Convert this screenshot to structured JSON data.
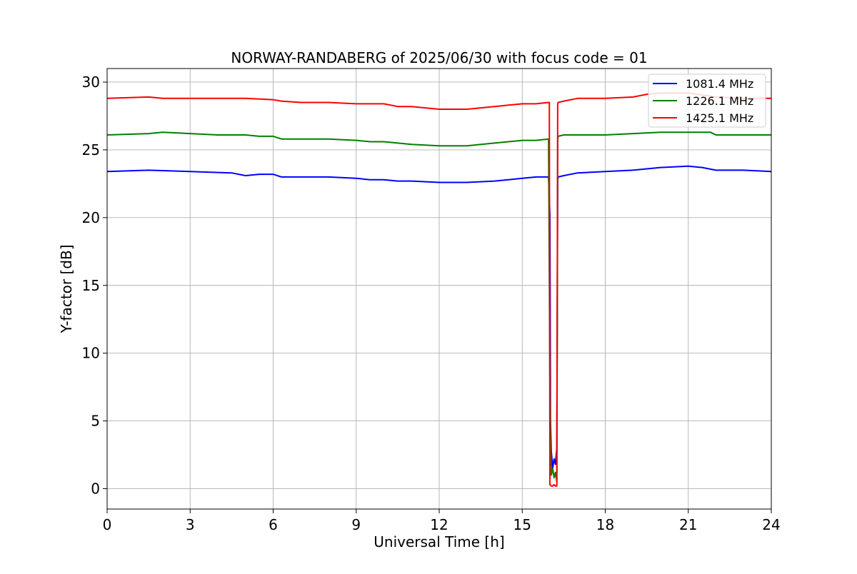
{
  "chart_data": {
    "type": "line",
    "title": "NORWAY-RANDABERG of 2025/06/30 with focus code = 01",
    "xlabel": "Universal Time [h]",
    "ylabel": "Y-factor [dB]",
    "xlim": [
      0,
      24
    ],
    "ylim": [
      -1.5,
      31
    ],
    "xticks": [
      0,
      3,
      6,
      9,
      12,
      15,
      18,
      21,
      24
    ],
    "yticks": [
      0,
      5,
      10,
      15,
      20,
      25,
      30
    ],
    "grid": true,
    "legend_position": "top-right",
    "series": [
      {
        "name": "1081.4 MHz",
        "color": "#0000ff",
        "x": [
          0,
          1.5,
          3,
          4.5,
          5,
          5.5,
          6,
          6.3,
          7,
          8,
          9,
          9.5,
          10,
          10.5,
          11,
          12,
          13,
          14,
          14.5,
          15,
          15.5,
          15.95,
          16.0,
          16.02,
          16.05,
          16.1,
          16.15,
          16.2,
          16.25,
          16.28,
          16.3,
          16.5,
          17,
          18,
          19,
          20,
          21,
          21.5,
          22,
          23,
          24
        ],
        "y": [
          23.4,
          23.5,
          23.4,
          23.3,
          23.1,
          23.2,
          23.2,
          23.0,
          23.0,
          23.0,
          22.9,
          22.8,
          22.8,
          22.7,
          22.7,
          22.6,
          22.6,
          22.7,
          22.8,
          22.9,
          23.0,
          23.0,
          20.2,
          5.0,
          2.8,
          1.5,
          2.2,
          1.8,
          3.0,
          22.8,
          23.0,
          23.1,
          23.3,
          23.4,
          23.5,
          23.7,
          23.8,
          23.7,
          23.5,
          23.5,
          23.4
        ]
      },
      {
        "name": "1226.1 MHz",
        "color": "#008000",
        "x": [
          0,
          1.5,
          2,
          3,
          4,
          5,
          5.5,
          6,
          6.3,
          7,
          8,
          9,
          9.5,
          10,
          10.5,
          11,
          12,
          13,
          14,
          14.5,
          15,
          15.5,
          15.95,
          16.0,
          16.02,
          16.05,
          16.1,
          16.15,
          16.2,
          16.25,
          16.28,
          16.3,
          16.5,
          17,
          18,
          19,
          20,
          21,
          21.8,
          22,
          23,
          24
        ],
        "y": [
          26.1,
          26.2,
          26.3,
          26.2,
          26.1,
          26.1,
          26.0,
          26.0,
          25.8,
          25.8,
          25.8,
          25.7,
          25.6,
          25.6,
          25.5,
          25.4,
          25.3,
          25.3,
          25.5,
          25.6,
          25.7,
          25.7,
          25.8,
          8.0,
          4.0,
          1.0,
          1.5,
          0.8,
          1.2,
          0.5,
          25.8,
          26.0,
          26.1,
          26.1,
          26.1,
          26.2,
          26.3,
          26.3,
          26.3,
          26.1,
          26.1,
          26.1
        ]
      },
      {
        "name": "1425.1 MHz",
        "color": "#ff0000",
        "x": [
          0,
          1.5,
          2,
          3,
          4,
          5,
          6,
          6.3,
          7,
          8,
          9,
          9.5,
          10,
          10.5,
          11,
          12,
          13,
          14,
          14.5,
          15,
          15.5,
          15.95,
          15.98,
          16.0,
          16.05,
          16.1,
          16.15,
          16.2,
          16.25,
          16.28,
          16.3,
          16.5,
          17,
          18,
          19,
          19.5,
          20,
          21,
          22,
          23,
          24
        ],
        "y": [
          28.8,
          28.9,
          28.8,
          28.8,
          28.8,
          28.8,
          28.7,
          28.6,
          28.5,
          28.5,
          28.4,
          28.4,
          28.4,
          28.2,
          28.2,
          28.0,
          28.0,
          28.2,
          28.3,
          28.4,
          28.4,
          28.5,
          28.5,
          0.3,
          0.2,
          0.2,
          0.3,
          0.2,
          0.2,
          28.4,
          28.5,
          28.6,
          28.8,
          28.8,
          28.9,
          29.1,
          29.2,
          29.2,
          28.9,
          28.8,
          28.8
        ]
      }
    ]
  }
}
